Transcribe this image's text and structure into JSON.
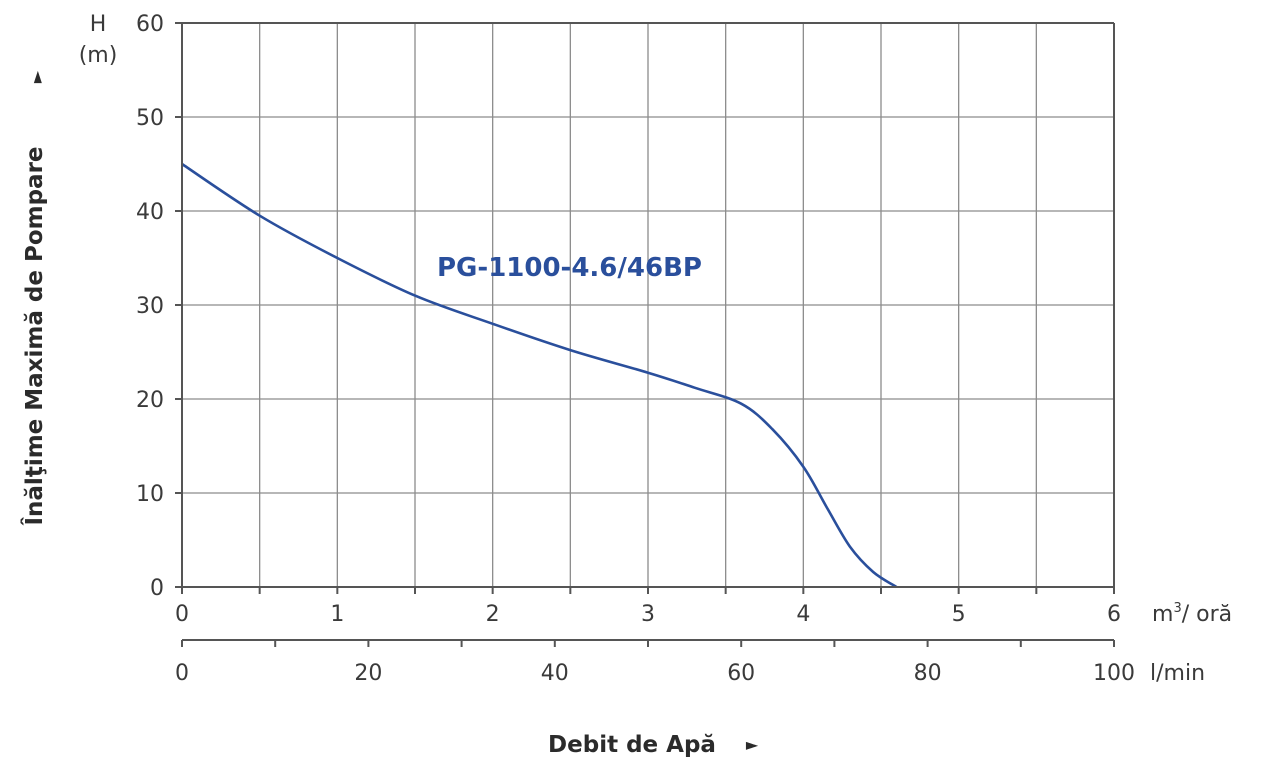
{
  "chart_data": {
    "type": "line",
    "y_axis": {
      "label_top": "H",
      "label_unit": "(m)",
      "title": "Înălţime Maximă de Pompare",
      "title_arrow": "►",
      "ticks": [
        "0",
        "10",
        "20",
        "30",
        "40",
        "50",
        "60"
      ],
      "ylim": [
        0,
        60
      ]
    },
    "x_axis_primary": {
      "ticks": [
        "0",
        "1",
        "2",
        "3",
        "4",
        "5",
        "6"
      ],
      "unit_m": "m",
      "unit_sup": "3",
      "unit_rest": "/ oră",
      "xlim": [
        0,
        6
      ]
    },
    "x_axis_secondary": {
      "ticks": [
        "0",
        "20",
        "40",
        "60",
        "80",
        "100"
      ],
      "unit": "l/min",
      "xlim": [
        0,
        100
      ]
    },
    "x_title": "Debit de Apă",
    "x_title_arrow": "►",
    "grid": true,
    "series": [
      {
        "name": "PG-1100-4.6/46BP",
        "color": "#2a4f9c",
        "x": [
          0,
          0.5,
          1.0,
          1.5,
          2.0,
          2.5,
          3.0,
          3.3,
          3.6,
          3.8,
          4.0,
          4.15,
          4.3,
          4.45,
          4.6
        ],
        "y": [
          45,
          39.5,
          35,
          31,
          28,
          25.2,
          22.8,
          21.2,
          19.5,
          16.8,
          12.8,
          8.5,
          4.3,
          1.6,
          0
        ]
      }
    ]
  }
}
